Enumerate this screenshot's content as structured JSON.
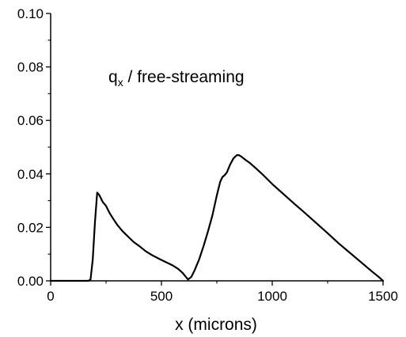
{
  "chart_data": {
    "type": "line",
    "title": "",
    "annotation": {
      "base": "q",
      "subscript": "x",
      "rest": " / free-streaming"
    },
    "xlabel": "x (microns)",
    "ylabel": "",
    "xlim": [
      0,
      1500
    ],
    "ylim": [
      0,
      0.1
    ],
    "x_ticks": [
      0,
      500,
      1000,
      1500
    ],
    "x_tick_labels": [
      "0",
      "500",
      "1000",
      "1500"
    ],
    "y_ticks": [
      0,
      0.02,
      0.04,
      0.06,
      0.08,
      0.1
    ],
    "y_tick_labels": [
      "0.00",
      "0.02",
      "0.04",
      "0.06",
      "0.08",
      "0.10"
    ],
    "grid": false,
    "series": [
      {
        "color": "#000000",
        "x": [
          0,
          150,
          170,
          180,
          190,
          200,
          210,
          220,
          235,
          250,
          265,
          280,
          300,
          325,
          350,
          375,
          400,
          430,
          460,
          490,
          520,
          550,
          575,
          595,
          610,
          620,
          635,
          650,
          670,
          690,
          710,
          730,
          750,
          765,
          775,
          785,
          795,
          810,
          825,
          840,
          850,
          860,
          880,
          900,
          930,
          960,
          1000,
          1050,
          1100,
          1150,
          1200,
          1250,
          1300,
          1350,
          1400,
          1450,
          1480,
          1500
        ],
        "y": [
          0,
          0,
          0,
          0.0005,
          0.008,
          0.022,
          0.033,
          0.032,
          0.0295,
          0.028,
          0.0255,
          0.0235,
          0.021,
          0.0185,
          0.0165,
          0.0145,
          0.013,
          0.011,
          0.0095,
          0.0082,
          0.007,
          0.0058,
          0.0045,
          0.003,
          0.0015,
          0.0005,
          0.0015,
          0.004,
          0.008,
          0.013,
          0.0185,
          0.0245,
          0.032,
          0.037,
          0.0388,
          0.0395,
          0.0405,
          0.0435,
          0.0458,
          0.047,
          0.047,
          0.0465,
          0.0452,
          0.044,
          0.0418,
          0.0395,
          0.0362,
          0.0325,
          0.0288,
          0.0252,
          0.0215,
          0.0178,
          0.014,
          0.0105,
          0.007,
          0.0035,
          0.0015,
          0
        ]
      }
    ]
  }
}
